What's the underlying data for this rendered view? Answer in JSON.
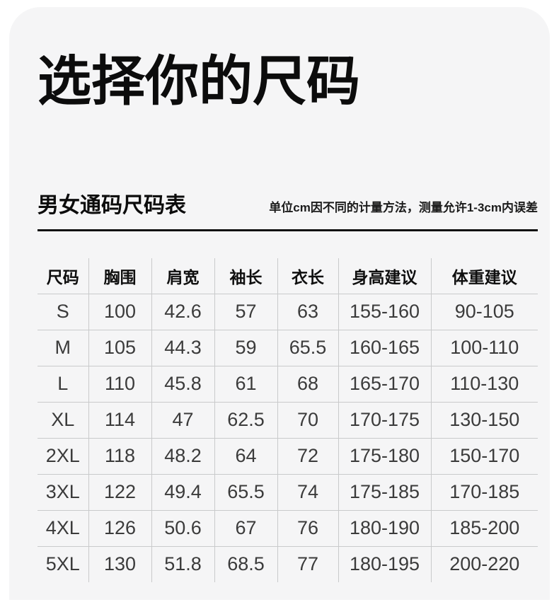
{
  "title": "选择你的尺码",
  "section": {
    "subtitle": "男女通码尺码表",
    "note": "单位cm因不同的计量方法，测量允许1-3cm内误差"
  },
  "table": {
    "headers": [
      "尺码",
      "胸围",
      "肩宽",
      "袖长",
      "衣长",
      "身高建议",
      "体重建议"
    ],
    "rows": [
      [
        "S",
        "100",
        "42.6",
        "57",
        "63",
        "155-160",
        "90-105"
      ],
      [
        "M",
        "105",
        "44.3",
        "59",
        "65.5",
        "160-165",
        "100-110"
      ],
      [
        "L",
        "110",
        "45.8",
        "61",
        "68",
        "165-170",
        "110-130"
      ],
      [
        "XL",
        "114",
        "47",
        "62.5",
        "70",
        "170-175",
        "130-150"
      ],
      [
        "2XL",
        "118",
        "48.2",
        "64",
        "72",
        "175-180",
        "150-170"
      ],
      [
        "3XL",
        "122",
        "49.4",
        "65.5",
        "74",
        "175-185",
        "170-185"
      ],
      [
        "4XL",
        "126",
        "50.6",
        "67",
        "76",
        "180-190",
        "185-200"
      ],
      [
        "5XL",
        "130",
        "51.8",
        "68.5",
        "77",
        "180-195",
        "200-220"
      ]
    ]
  },
  "colors": {
    "page_bg": "#ffffff",
    "card_bg": "#f5f5f6",
    "divider": "#111111",
    "table_border": "#c9cacb",
    "heading_text": "#0c0c0c",
    "body_text": "#3b3b3b"
  }
}
